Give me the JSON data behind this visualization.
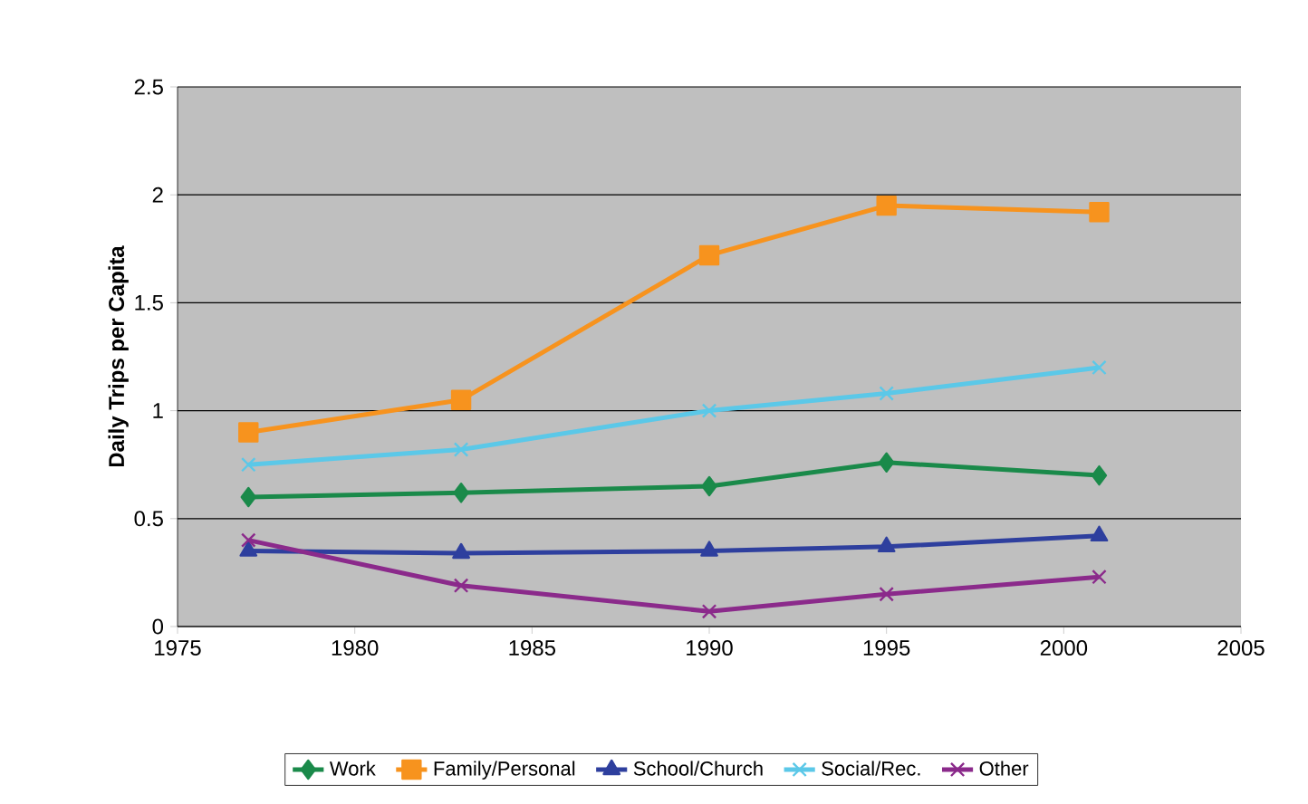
{
  "chart_data": {
    "type": "line",
    "ylabel": "Daily Trips per Capita",
    "x": [
      1977,
      1983,
      1990,
      1995,
      2001
    ],
    "xlim": [
      1975,
      2005
    ],
    "xticks": [
      1975,
      1980,
      1985,
      1990,
      1995,
      2000,
      2005
    ],
    "ylim": [
      0,
      2.5
    ],
    "yticks": [
      0,
      0.5,
      1,
      1.5,
      2,
      2.5
    ],
    "grid": "y",
    "legend": "bottom",
    "line_style": "solid",
    "series": [
      {
        "name": "Work",
        "color": "#1a8a4a",
        "marker": "diamond",
        "values": [
          0.6,
          0.62,
          0.65,
          0.76,
          0.7
        ]
      },
      {
        "name": "Family/Personal",
        "color": "#f7931e",
        "marker": "square",
        "values": [
          0.9,
          1.05,
          1.72,
          1.95,
          1.92
        ]
      },
      {
        "name": "School/Church",
        "color": "#2e3f9e",
        "marker": "triangle",
        "values": [
          0.35,
          0.34,
          0.35,
          0.37,
          0.42
        ]
      },
      {
        "name": "Social/Rec.",
        "color": "#5bc8e8",
        "marker": "cross",
        "values": [
          0.75,
          0.82,
          1.0,
          1.08,
          1.2
        ]
      },
      {
        "name": "Other",
        "color": "#8b2a8b",
        "marker": "cross",
        "values": [
          0.4,
          0.19,
          0.07,
          0.15,
          0.23
        ]
      }
    ]
  }
}
